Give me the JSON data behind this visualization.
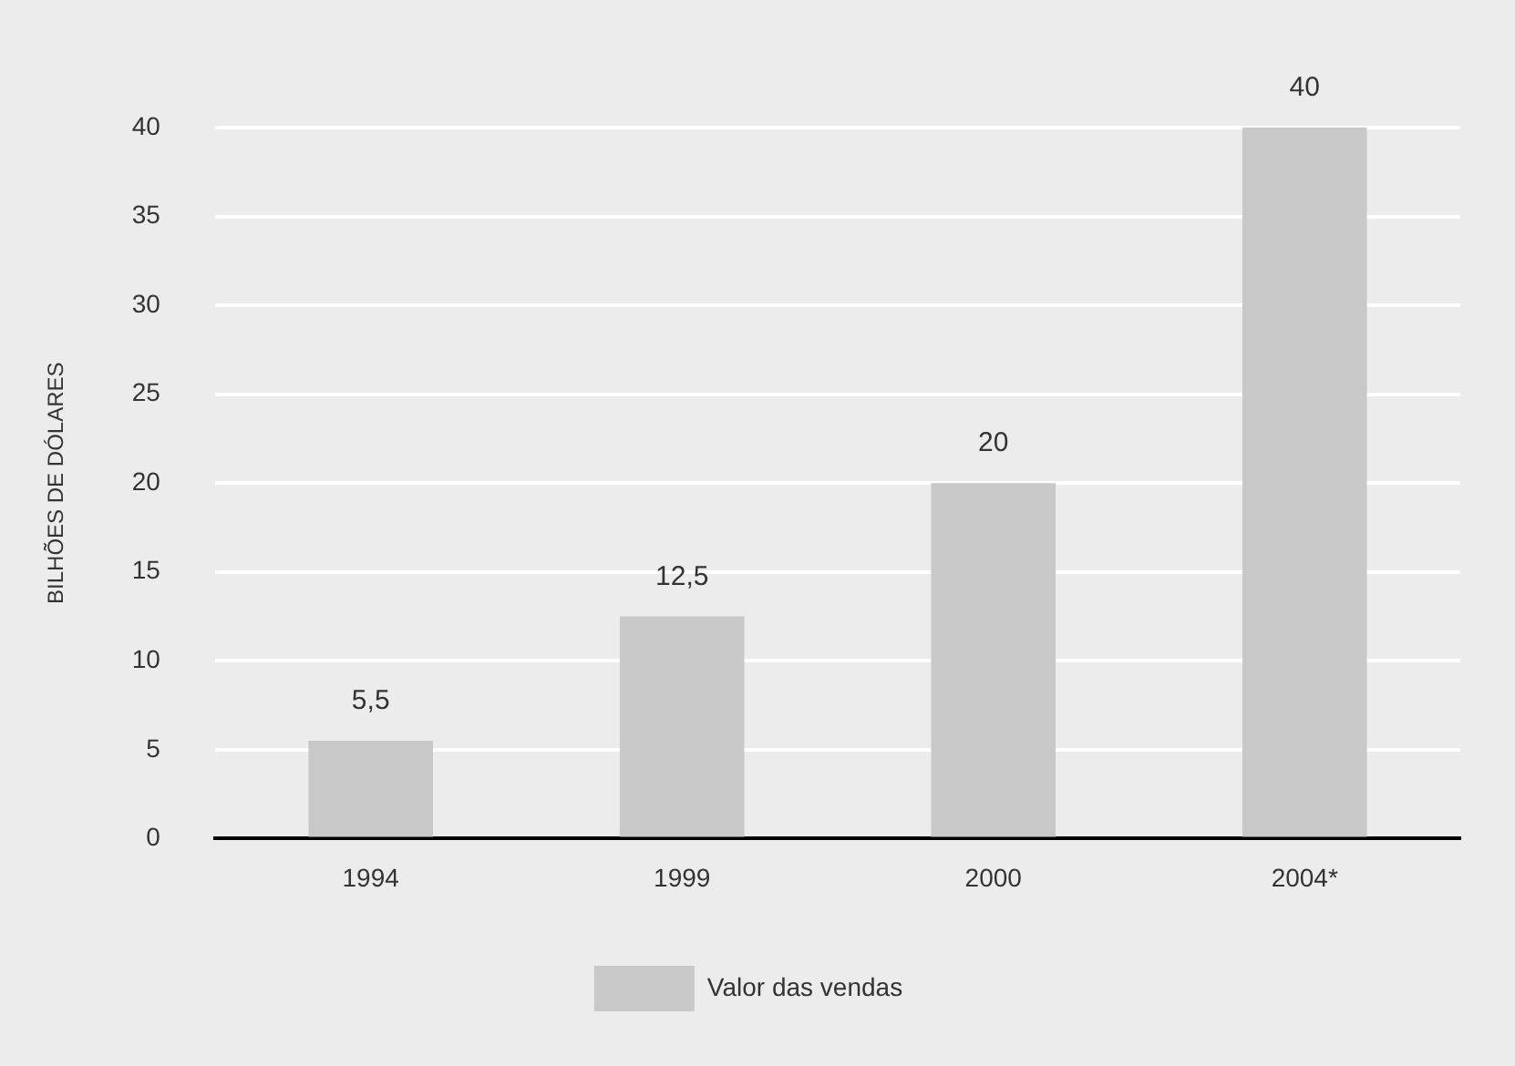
{
  "chart_data": {
    "type": "bar",
    "ylabel": "BILHÕES DE DÓLARES",
    "categories": [
      "1994",
      "1999",
      "2000",
      "2004*"
    ],
    "series": [
      {
        "name": "Valor das vendas",
        "color": "#c8c8c8",
        "values": [
          5.5,
          12.5,
          20,
          40
        ],
        "value_labels": [
          "5,5",
          "12,5",
          "20",
          "40"
        ]
      }
    ],
    "ylim": [
      0,
      40
    ],
    "yticks": [
      0,
      5,
      10,
      15,
      20,
      25,
      30,
      35,
      40
    ],
    "grid": "y",
    "legend": "bottom"
  }
}
